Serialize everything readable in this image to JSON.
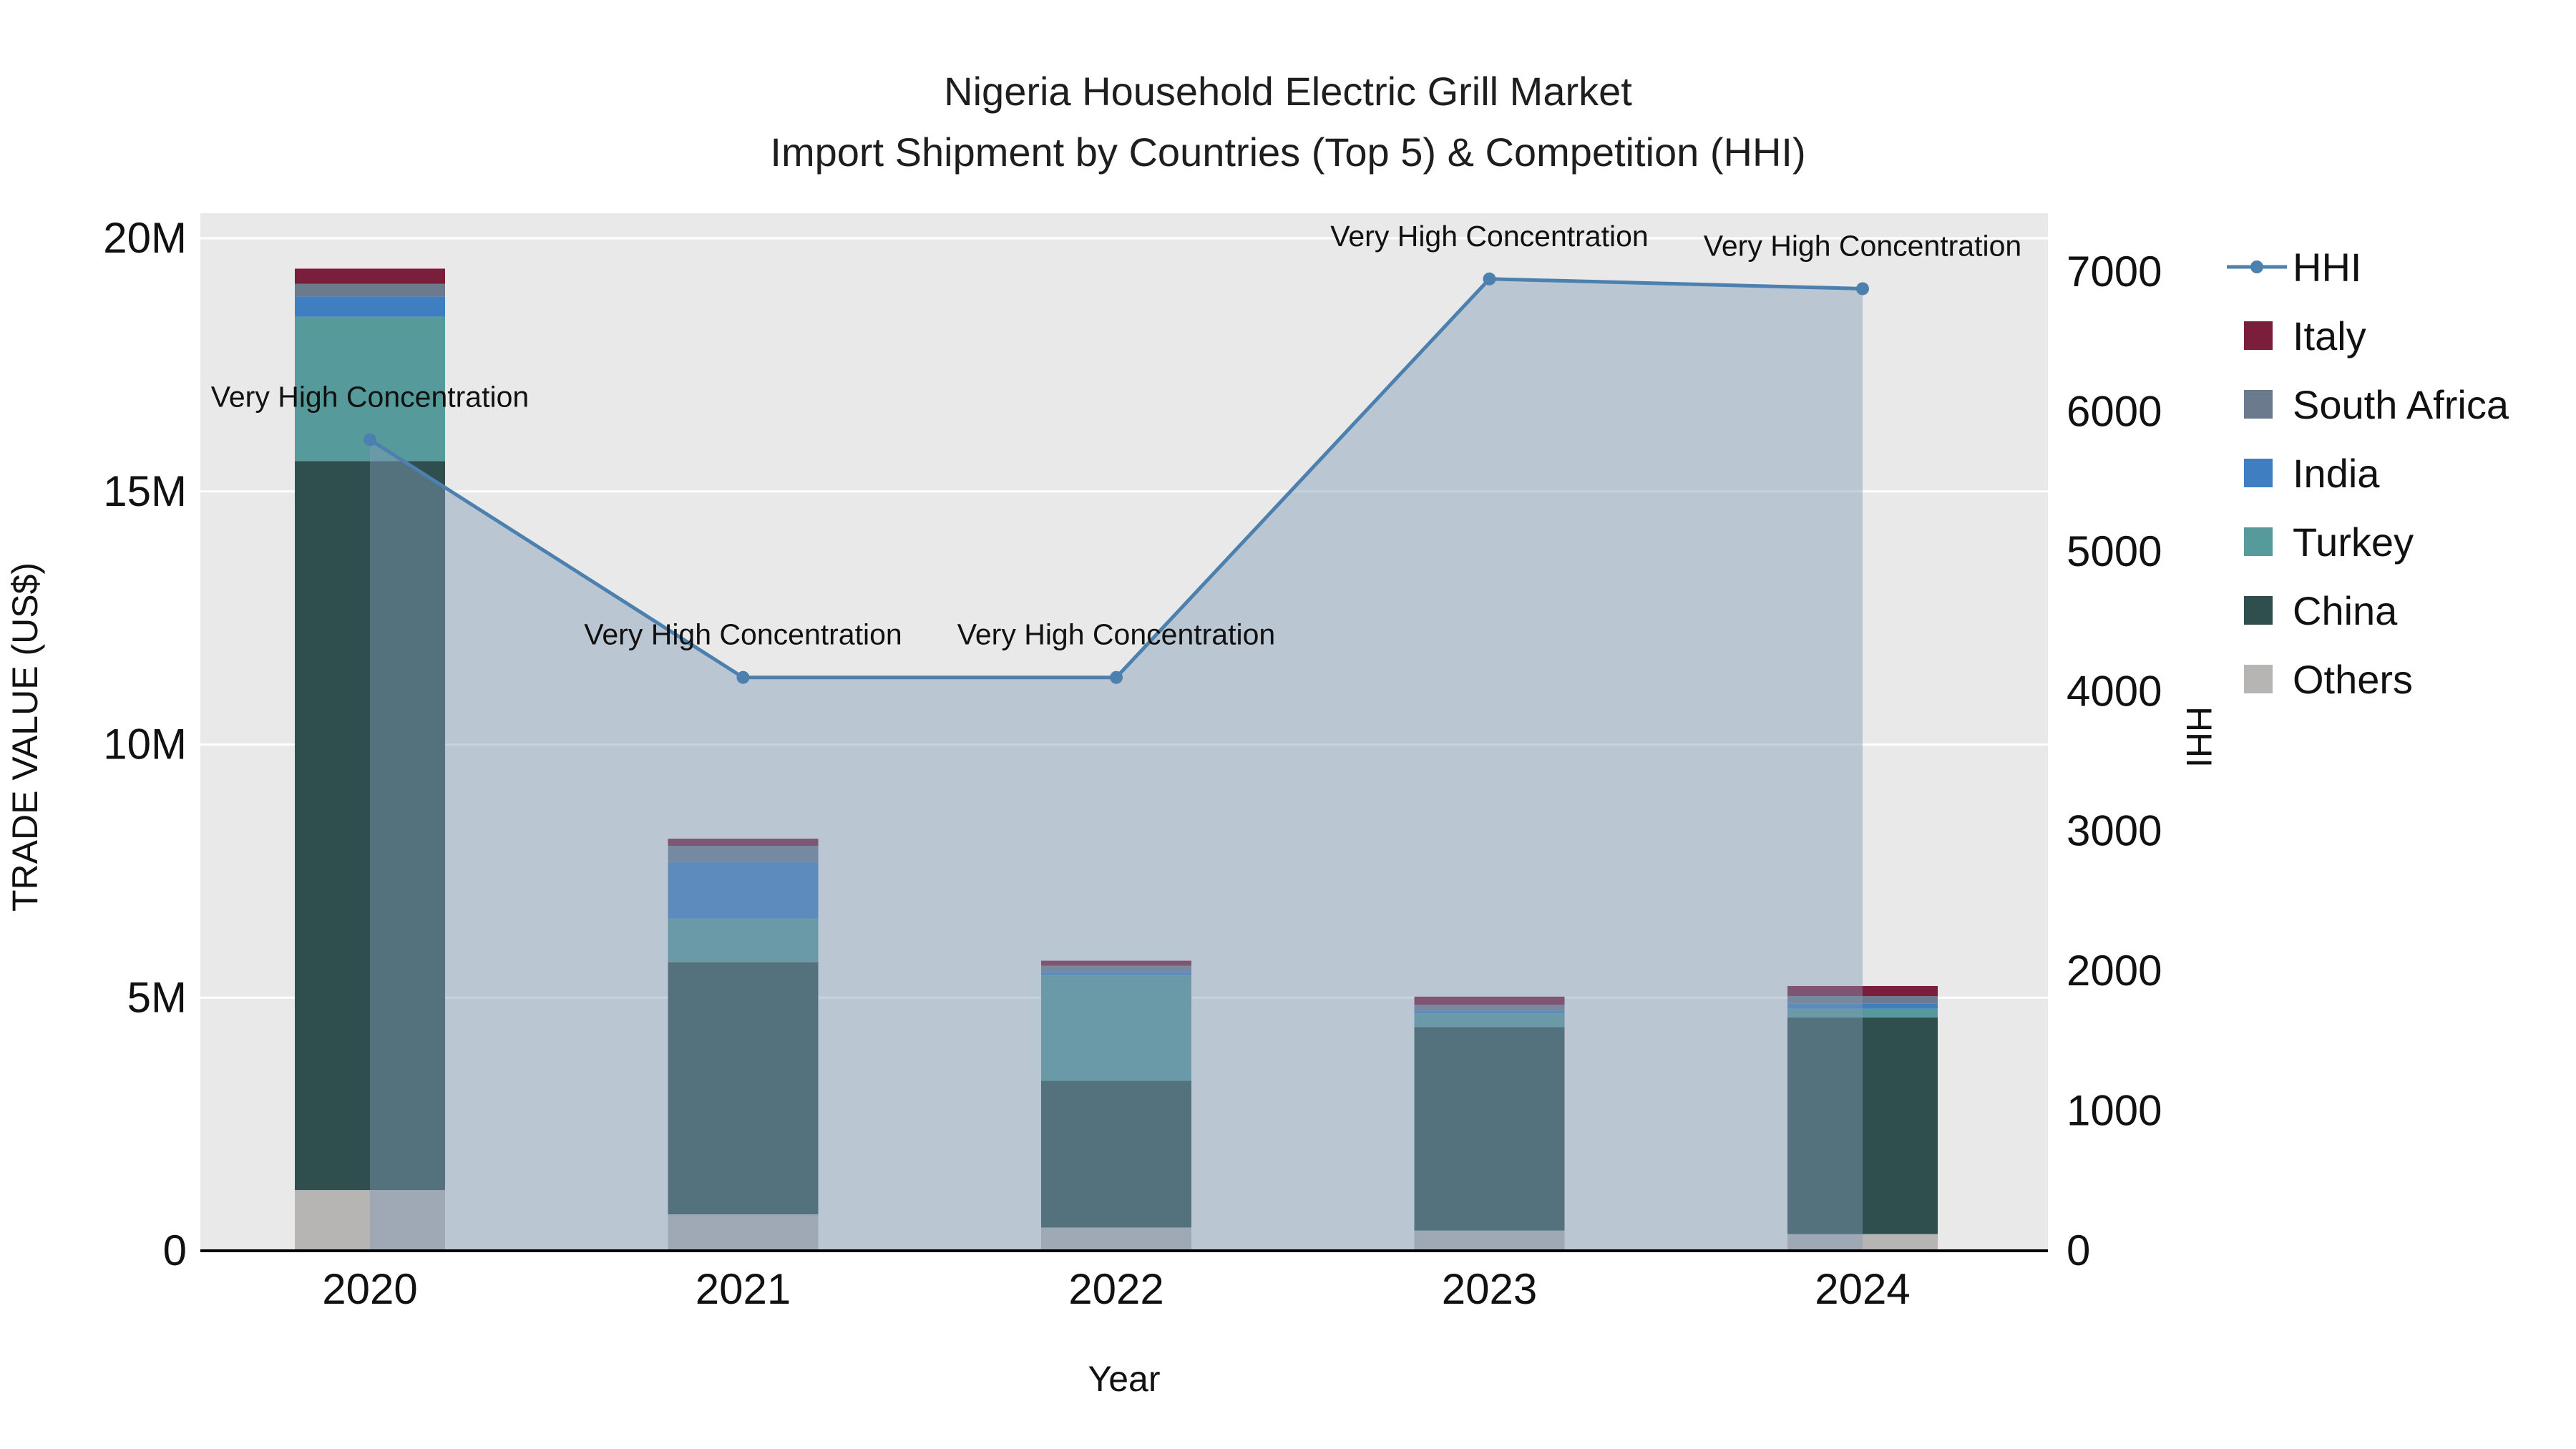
{
  "title": {
    "line1": "Nigeria Household Electric Grill Market",
    "line2": "Import Shipment by Countries (Top 5) & Competition (HHI)"
  },
  "chart_data": {
    "type": "combo-stacked-bar-line",
    "plot_background": "#e9e9e9",
    "categories": [
      "2020",
      "2021",
      "2022",
      "2023",
      "2024"
    ],
    "x_axis": {
      "label": "Year"
    },
    "left_axis": {
      "label": "TRADE VALUE (US$)",
      "unit": "million USD",
      "max": 20,
      "tick_values": [
        0,
        5,
        10,
        15,
        20
      ],
      "tick_labels": [
        "0",
        "5M",
        "10M",
        "15M",
        "20M"
      ]
    },
    "right_axis": {
      "label": "HHI",
      "max": 7000,
      "tick_values": [
        0,
        1000,
        2000,
        3000,
        4000,
        5000,
        6000,
        7000
      ],
      "tick_labels": [
        "0",
        "1000",
        "2000",
        "3000",
        "4000",
        "5000",
        "6000",
        "7000"
      ]
    },
    "bar_series": [
      {
        "name": "Others",
        "color": "#b7b4b4",
        "values": [
          1.2,
          0.72,
          0.46,
          0.4,
          0.33
        ]
      },
      {
        "name": "China",
        "color": "#2f4f4f",
        "values": [
          14.4,
          4.98,
          2.9,
          4.02,
          4.28
        ]
      },
      {
        "name": "Turkey",
        "color": "#579a9c",
        "values": [
          2.85,
          0.86,
          2.08,
          0.27,
          0.17
        ]
      },
      {
        "name": "India",
        "color": "#3f7fc1",
        "values": [
          0.4,
          1.12,
          0.07,
          0.05,
          0.1
        ]
      },
      {
        "name": "South Africa",
        "color": "#6b7a8d",
        "values": [
          0.25,
          0.32,
          0.12,
          0.12,
          0.15
        ]
      },
      {
        "name": "Italy",
        "color": "#7a1e3c",
        "values": [
          0.3,
          0.14,
          0.1,
          0.16,
          0.2
        ]
      }
    ],
    "line_series": {
      "name": "HHI",
      "color": "#4c80ae",
      "area_fill": "rgba(130,155,185,0.45)",
      "values": [
        5800,
        4100,
        4100,
        6950,
        6880
      ]
    },
    "point_annotations": [
      "Very High Concentration",
      "Very High Concentration",
      "Very High Concentration",
      "Very High Concentration",
      "Very High Concentration"
    ],
    "legend": [
      "HHI",
      "Italy",
      "South Africa",
      "India",
      "Turkey",
      "China",
      "Others"
    ]
  }
}
